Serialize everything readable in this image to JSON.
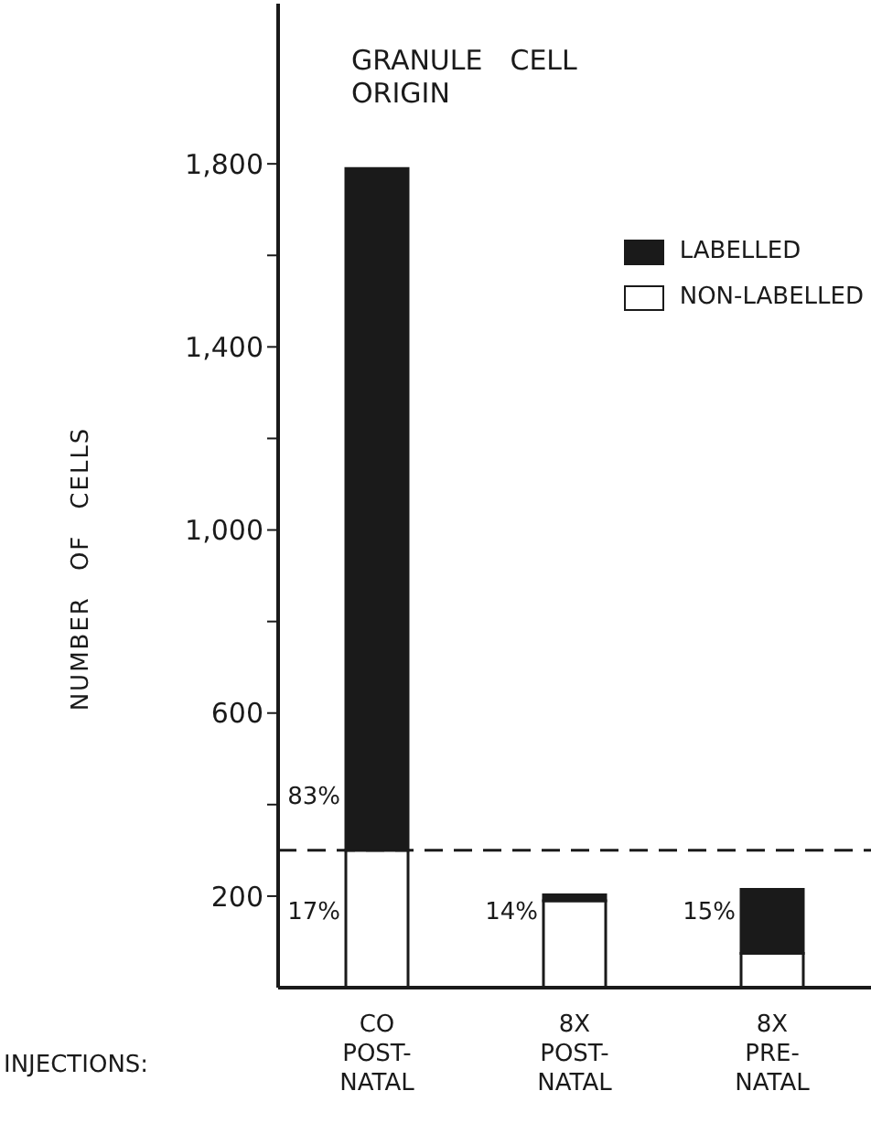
{
  "chart_data": {
    "type": "bar",
    "title": "GRANULE CELL ORIGIN",
    "xlabel": "INJECTIONS:",
    "ylabel": "NUMBER OF CELLS",
    "categories": [
      "CO\nPOST-\nNATAL",
      "8X\nPOST-\nNATAL",
      "8X\nPRE-\nNATAL"
    ],
    "stacked": true,
    "series": [
      {
        "name": "NON-LABELLED",
        "color": "#ffffff",
        "values": [
          300,
          190,
          75
        ]
      },
      {
        "name": "LABELLED",
        "color": "#1a1a1a",
        "values": [
          1490,
          13,
          140
        ]
      }
    ],
    "ylim": [
      0,
      2150
    ],
    "yticks": [
      {
        "value": 200,
        "label": "200"
      },
      {
        "value": 400,
        "label": null
      },
      {
        "value": 600,
        "label": "600"
      },
      {
        "value": 800,
        "label": null
      },
      {
        "value": 1000,
        "label": "1,000"
      },
      {
        "value": 1200,
        "label": null
      },
      {
        "value": 1400,
        "label": "1,400"
      },
      {
        "value": 1600,
        "label": null
      },
      {
        "value": 1800,
        "label": "1,800"
      }
    ],
    "ref_lines": [
      {
        "axis": "y",
        "value": 300,
        "line_style": "dashed",
        "color": "#1a1a1a"
      }
    ],
    "annotations": [
      "83%",
      "17%",
      "14%",
      "15%"
    ],
    "legend": "top right",
    "grid": false
  }
}
